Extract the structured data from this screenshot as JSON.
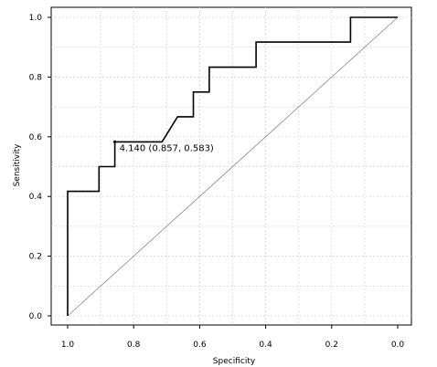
{
  "chart_data": {
    "type": "line",
    "xlabel": "Specificity",
    "ylabel": "Sensitivity",
    "xlim": [
      1.0,
      0.0
    ],
    "ylim": [
      0.0,
      1.0
    ],
    "x_reversed": true,
    "grid": true,
    "x_ticks": [
      1.0,
      0.8,
      0.6,
      0.4,
      0.2,
      0.0
    ],
    "x_tick_labels": [
      "1.0",
      "0.8",
      "0.6",
      "0.4",
      "0.2",
      "0.0"
    ],
    "y_ticks": [
      0.0,
      0.2,
      0.4,
      0.6,
      0.8,
      1.0
    ],
    "y_tick_labels": [
      "0.0",
      "0.2",
      "0.4",
      "0.6",
      "0.8",
      "1.0"
    ],
    "series": [
      {
        "style": "step",
        "color": "#000000",
        "points": [
          {
            "specificity": 1.0,
            "sensitivity": 0.0
          },
          {
            "specificity": 1.0,
            "sensitivity": 0.417
          },
          {
            "specificity": 0.905,
            "sensitivity": 0.417
          },
          {
            "specificity": 0.905,
            "sensitivity": 0.5
          },
          {
            "specificity": 0.857,
            "sensitivity": 0.5
          },
          {
            "specificity": 0.857,
            "sensitivity": 0.583
          },
          {
            "specificity": 0.714,
            "sensitivity": 0.583
          },
          {
            "specificity": 0.667,
            "sensitivity": 0.667
          },
          {
            "specificity": 0.619,
            "sensitivity": 0.667
          },
          {
            "specificity": 0.619,
            "sensitivity": 0.75
          },
          {
            "specificity": 0.571,
            "sensitivity": 0.75
          },
          {
            "specificity": 0.571,
            "sensitivity": 0.833
          },
          {
            "specificity": 0.429,
            "sensitivity": 0.833
          },
          {
            "specificity": 0.429,
            "sensitivity": 0.917
          },
          {
            "specificity": 0.143,
            "sensitivity": 0.917
          },
          {
            "specificity": 0.143,
            "sensitivity": 1.0
          },
          {
            "specificity": 0.0,
            "sensitivity": 1.0
          }
        ]
      },
      {
        "style": "reference-diagonal",
        "color": "#888888",
        "points": [
          {
            "specificity": 1.0,
            "sensitivity": 0.0
          },
          {
            "specificity": 0.0,
            "sensitivity": 1.0
          }
        ]
      }
    ],
    "annotations": [
      {
        "text": "4.140 (0.857, 0.583)",
        "specificity": 0.857,
        "sensitivity": 0.583
      }
    ]
  }
}
